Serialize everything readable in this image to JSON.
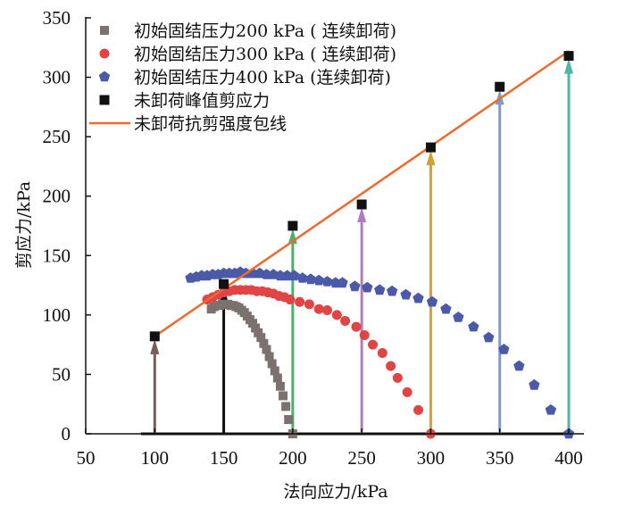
{
  "chart_data": {
    "type": "scatter",
    "title": "",
    "xlabel": "法向应力/kPa",
    "ylabel": "剪应力/kPa",
    "xlim": [
      50,
      400
    ],
    "ylim": [
      0,
      350
    ],
    "xticks": [
      50,
      100,
      150,
      200,
      250,
      300,
      350,
      400
    ],
    "yticks": [
      0,
      50,
      100,
      150,
      200,
      250,
      300,
      350
    ],
    "grid": false,
    "legend_position": "top-left",
    "series": [
      {
        "name": "初始固结压力200 kPa ( 连续卸荷)",
        "marker": "square",
        "color": "#7b716f",
        "points": [
          [
            141,
            105
          ],
          [
            143,
            107
          ],
          [
            145,
            108
          ],
          [
            147,
            108
          ],
          [
            149,
            109
          ],
          [
            151,
            109
          ],
          [
            153,
            109
          ],
          [
            155,
            108
          ],
          [
            157,
            108
          ],
          [
            159,
            107
          ],
          [
            161,
            106
          ],
          [
            163,
            104
          ],
          [
            165,
            102
          ],
          [
            167,
            99
          ],
          [
            169,
            96
          ],
          [
            171,
            93
          ],
          [
            173,
            89
          ],
          [
            175,
            85
          ],
          [
            177,
            81
          ],
          [
            179,
            76
          ],
          [
            181,
            71
          ],
          [
            183,
            65
          ],
          [
            185,
            59
          ],
          [
            187,
            53
          ],
          [
            189,
            47
          ],
          [
            191,
            40
          ],
          [
            193,
            32
          ],
          [
            195,
            23
          ],
          [
            197,
            12
          ],
          [
            200,
            0
          ]
        ]
      },
      {
        "name": "初始固结压力300 kPa ( 连续卸荷)",
        "marker": "circle",
        "color": "#e04444",
        "points": [
          [
            138,
            113
          ],
          [
            142,
            115
          ],
          [
            146,
            117
          ],
          [
            150,
            119
          ],
          [
            154,
            120
          ],
          [
            158,
            121
          ],
          [
            162,
            121
          ],
          [
            166,
            121
          ],
          [
            170,
            121
          ],
          [
            174,
            120
          ],
          [
            178,
            120
          ],
          [
            182,
            119
          ],
          [
            186,
            118
          ],
          [
            190,
            116
          ],
          [
            194,
            115
          ],
          [
            198,
            113
          ],
          [
            205,
            111
          ],
          [
            212,
            109
          ],
          [
            219,
            105
          ],
          [
            225,
            104
          ],
          [
            232,
            100
          ],
          [
            238,
            95
          ],
          [
            246,
            90
          ],
          [
            252,
            83
          ],
          [
            258,
            75
          ],
          [
            265,
            68
          ],
          [
            271,
            57
          ],
          [
            276,
            47
          ],
          [
            283,
            35
          ],
          [
            291,
            20
          ],
          [
            300,
            0
          ]
        ]
      },
      {
        "name": "初始固结压力400 kPa (连续卸荷)",
        "marker": "pentagon",
        "color": "#4a5aa8",
        "points": [
          [
            126,
            131
          ],
          [
            130,
            132
          ],
          [
            134,
            133
          ],
          [
            138,
            133
          ],
          [
            142,
            134
          ],
          [
            146,
            134
          ],
          [
            150,
            135
          ],
          [
            154,
            135
          ],
          [
            158,
            135
          ],
          [
            162,
            136
          ],
          [
            166,
            135
          ],
          [
            171,
            135
          ],
          [
            176,
            135
          ],
          [
            181,
            134
          ],
          [
            186,
            134
          ],
          [
            191,
            133
          ],
          [
            196,
            133
          ],
          [
            201,
            133
          ],
          [
            207,
            131
          ],
          [
            213,
            130
          ],
          [
            219,
            129
          ],
          [
            225,
            128
          ],
          [
            231,
            127
          ],
          [
            236,
            127
          ],
          [
            245,
            124
          ],
          [
            254,
            123
          ],
          [
            263,
            121
          ],
          [
            272,
            120
          ],
          [
            282,
            117
          ],
          [
            291,
            114
          ],
          [
            301,
            111
          ],
          [
            311,
            105
          ],
          [
            320,
            98
          ],
          [
            331,
            90
          ],
          [
            342,
            81
          ],
          [
            353,
            71
          ],
          [
            364,
            57
          ],
          [
            375,
            41
          ],
          [
            387,
            20
          ],
          [
            400,
            0
          ]
        ]
      },
      {
        "name": "未卸荷峰值剪应力",
        "marker": "filled-square",
        "color": "#111111",
        "points": [
          [
            100,
            82
          ],
          [
            150,
            126
          ],
          [
            200,
            175
          ],
          [
            250,
            193
          ],
          [
            300,
            241
          ],
          [
            350,
            292
          ],
          [
            400,
            318
          ]
        ]
      },
      {
        "name": "未卸荷抗剪强度包线",
        "type": "line",
        "color": "#ec6b2d",
        "points": [
          [
            100,
            82
          ],
          [
            400,
            322
          ]
        ]
      }
    ],
    "arrows": [
      {
        "x": 100,
        "from": 0,
        "to": 82,
        "color": "#7a5a5a"
      },
      {
        "x": 150,
        "from": 0,
        "to": 126,
        "color": "#111111"
      },
      {
        "x": 200,
        "from": 0,
        "to": 175,
        "color": "#4caf6e"
      },
      {
        "x": 250,
        "from": 0,
        "to": 193,
        "color": "#b07cc0"
      },
      {
        "x": 300,
        "from": 0,
        "to": 241,
        "color": "#d4a030"
      },
      {
        "x": 350,
        "from": 0,
        "to": 292,
        "color": "#7f9cc8"
      },
      {
        "x": 400,
        "from": 0,
        "to": 318,
        "color": "#4fb5a8"
      }
    ],
    "baseline": {
      "from": 90,
      "to": 400,
      "color": "#111111"
    }
  }
}
